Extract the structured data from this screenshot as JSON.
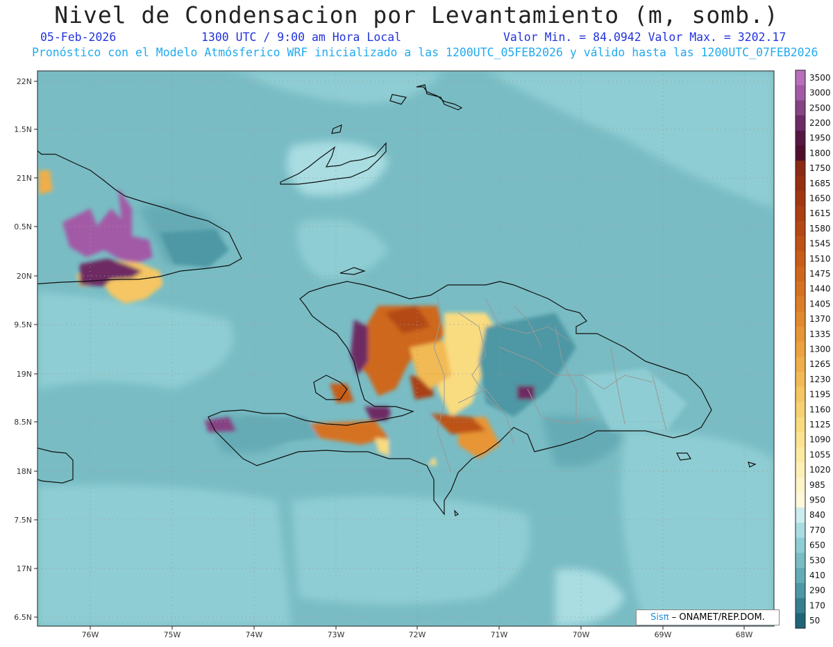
{
  "header": {
    "title": "Nivel de Condensacion por Levantamiento (m, somb.)",
    "date": "05-Feb-2026",
    "time": "1300 UTC / 9:00 am Hora Local",
    "min_max": "Valor Min. = 84.0942  Valor Max. = 3202.17",
    "description": "Pronóstico con el Modelo Atmósferico WRF inicializado a las 1200UTC_05FEB2026 y válido hasta las  1200UTC_07FEB2026"
  },
  "map": {
    "lat_labels": [
      "22N",
      "1.5N",
      "21N",
      "0.5N",
      "20N",
      "9.5N",
      "19N",
      "8.5N",
      "18N",
      "7.5N",
      "17N",
      "6.5N"
    ],
    "lon_labels": [
      "76W",
      "75W",
      "74W",
      "73W",
      "72W",
      "71W",
      "70W",
      "69W",
      "68W"
    ]
  },
  "colorbar": {
    "labels": [
      "3500",
      "3000",
      "2500",
      "2200",
      "1950",
      "1800",
      "1750",
      "1685",
      "1650",
      "1615",
      "1580",
      "1545",
      "1510",
      "1475",
      "1440",
      "1405",
      "1370",
      "1335",
      "1300",
      "1265",
      "1230",
      "1195",
      "1160",
      "1125",
      "1090",
      "1055",
      "1020",
      "985",
      "950",
      "840",
      "770",
      "650",
      "530",
      "410",
      "290",
      "170",
      "50"
    ],
    "colors": [
      "#b66fb8",
      "#a35aa6",
      "#874383",
      "#6e2a64",
      "#561742",
      "#4f0f2c",
      "#8a2a14",
      "#962f12",
      "#a03712",
      "#aa3f12",
      "#b44814",
      "#be5216",
      "#c65c18",
      "#ce671c",
      "#d57222",
      "#dc7e28",
      "#e2892e",
      "#e79536",
      "#eba23f",
      "#efae4a",
      "#f2ba55",
      "#f5c663",
      "#f7d171",
      "#f9db80",
      "#fbe392",
      "#fceaa3",
      "#fdf0b6",
      "#fef5c8",
      "#fef9db",
      "#ccecef",
      "#a9dde2",
      "#8ecdd3",
      "#79bcc4",
      "#65abb5",
      "#4d98a4",
      "#377f8e",
      "#1f6577"
    ]
  },
  "credit": {
    "brand": "Sisπ",
    "text": "– ONAMET/REP.DOM."
  }
}
